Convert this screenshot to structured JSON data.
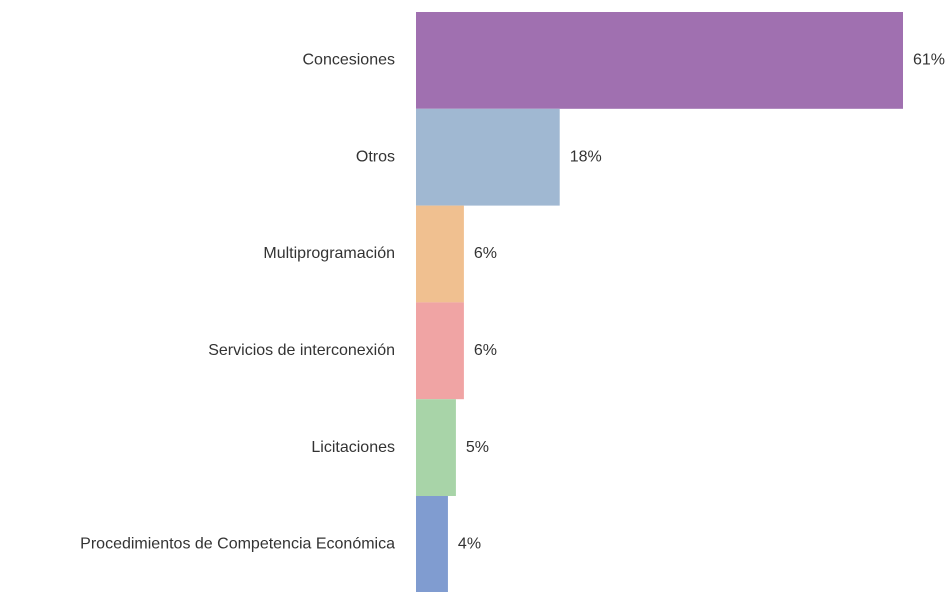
{
  "chart_data": {
    "type": "barh",
    "categories": [
      "Concesiones",
      "Otros",
      "Multiprogramación",
      "Servicios de interconexión",
      "Licitaciones",
      "Procedimientos de Competencia Económica"
    ],
    "values": [
      61,
      18,
      6,
      6,
      5,
      4
    ],
    "value_labels": [
      "61%",
      "18%",
      "6%",
      "6%",
      "5%",
      "4%"
    ],
    "colors": [
      "#a070b0",
      "#a0b8d2",
      "#f0c090",
      "#f0a4a4",
      "#a8d4a8",
      "#809cd0"
    ]
  }
}
